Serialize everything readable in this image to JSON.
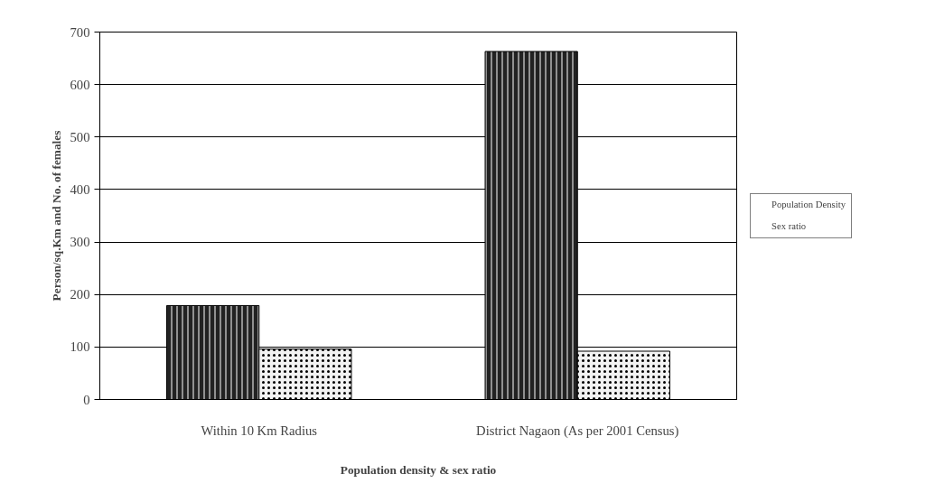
{
  "chart_data": {
    "type": "bar",
    "xlabel": "Population density & sex ratio",
    "ylabel": "Person/sq.Km and No. of females",
    "categories": [
      "Within 10 Km Radius",
      "District Nagaon (As per 2001 Census)"
    ],
    "series": [
      {
        "name": "Population Density",
        "color": "#222222",
        "values": [
          179,
          663
        ]
      },
      {
        "name": "Sex ratio",
        "color": "#f2f2f2",
        "values": [
          96,
          92
        ]
      }
    ],
    "ylim": [
      0,
      700
    ],
    "yticks": [
      0,
      100,
      200,
      300,
      400,
      500,
      600,
      700
    ],
    "grid": "y",
    "legend": "right"
  }
}
